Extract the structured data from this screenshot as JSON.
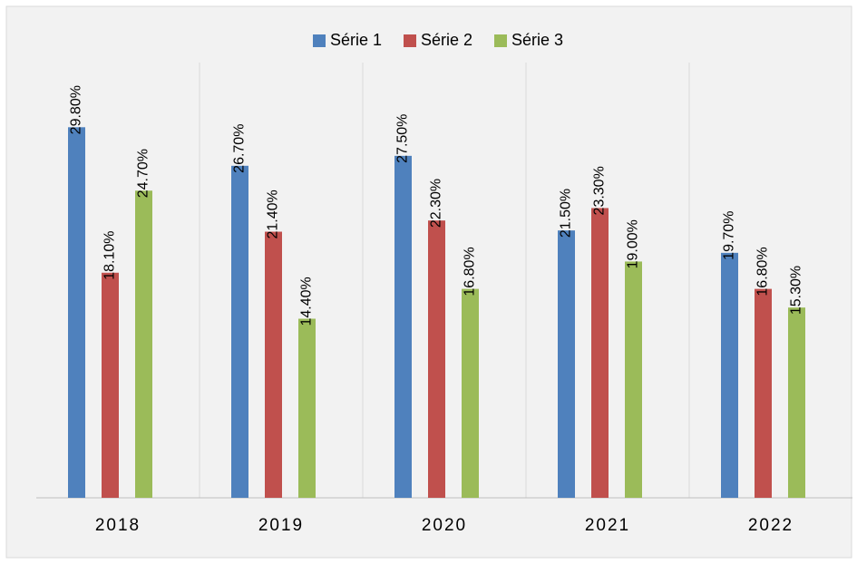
{
  "chart_data": {
    "type": "bar",
    "categories": [
      "2018",
      "2019",
      "2020",
      "2021",
      "2022"
    ],
    "series": [
      {
        "name": "Série 1",
        "color": "#4f81bd",
        "values": [
          29.8,
          26.7,
          27.5,
          21.5,
          19.7
        ],
        "value_labels": [
          "29.80%",
          "26.70%",
          "27.50%",
          "21.50%",
          "19.70%"
        ]
      },
      {
        "name": "Série 2",
        "color": "#c0504d",
        "values": [
          18.1,
          21.4,
          22.3,
          23.3,
          16.8
        ],
        "value_labels": [
          "18.10%",
          "21.40%",
          "22.30%",
          "23.30%",
          "16.80%"
        ]
      },
      {
        "name": "Série 3",
        "color": "#9bbb59",
        "values": [
          24.7,
          14.4,
          16.8,
          19.0,
          15.3
        ],
        "value_labels": [
          "24.70%",
          "14.40%",
          "16.80%",
          "19.00%",
          "15.30%"
        ]
      }
    ],
    "ylim": [
      0,
      35
    ],
    "legend": "top"
  }
}
